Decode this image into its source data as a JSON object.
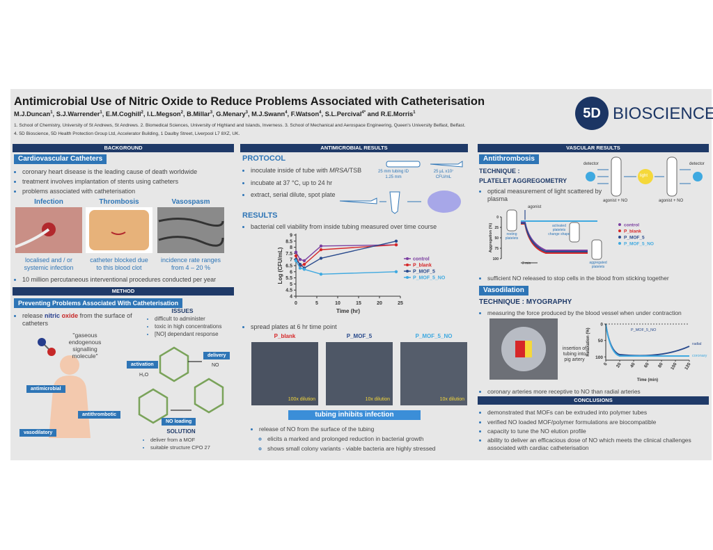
{
  "header": {
    "title": "Antimicrobial Use of Nitric Oxide to Reduce Problems Associated with Catheterisation",
    "authors": [
      {
        "name": "M.J.Duncan",
        "sup": "1"
      },
      {
        "name": "S.J.Warrender",
        "sup": "1"
      },
      {
        "name": "E.M.Coghill",
        "sup": "2"
      },
      {
        "name": "I.L.Megson",
        "sup": "2"
      },
      {
        "name": "B.Millar",
        "sup": "3"
      },
      {
        "name": "G.Menary",
        "sup": "3"
      },
      {
        "name": "M.J.Swann",
        "sup": "4"
      },
      {
        "name": "F.Watson",
        "sup": "4"
      },
      {
        "name": "S.L.Percival",
        "sup": "4*"
      },
      {
        "name": "R.E.Morris",
        "sup": "1"
      }
    ],
    "separator": ", ",
    "conjunction": " and ",
    "affiliations": [
      "1. School of Chemistry, University of St Andrews, St Andrews. 2. Biomedical Sciences, University of Highland and Islands, Inverness. 3. School of Mechanical and Aerospace Engineering, Queen's University Belfast, Belfast.",
      "4. 5D Bioscience, 5D Health Protection Group Ltd, Accelerator Building, 1 Daulby Street, Liverpool L7 8XZ, UK."
    ],
    "logo": {
      "mark": "5D",
      "name": "BIOSCIENCE"
    }
  },
  "background": {
    "heading": "BACKGROUND",
    "subheading": "Cardiovascular Catheters",
    "bullets": [
      "coronary heart disease is the leading cause of death worldwide",
      "treatment involves implantation of stents using catheters",
      "problems associated with catheterisation"
    ],
    "panels": [
      {
        "title": "Infection",
        "caption": "localised and / or systemic infection"
      },
      {
        "title": "Thrombosis",
        "caption": "catheter blocked due to this blood clot"
      },
      {
        "title": "Vasospasm",
        "caption": "incidence rate ranges from 4 – 20 %"
      }
    ],
    "footer_bullet": "10 million percutaneous interventional procedures conducted per year"
  },
  "method": {
    "heading": "METHOD",
    "subheading": "Preventing Problems Associated With Catheterisation",
    "bullet": [
      "release ",
      "nitric",
      " ",
      "oxide",
      " from the surface of catheters"
    ],
    "quote": "\"gaseous endogenous signalling molecule\"",
    "body_labels": [
      "antimicrobial",
      "antithrombotic",
      "vasodilatory"
    ],
    "issues": {
      "title": "ISSUES",
      "items": [
        "difficult to administer",
        "toxic in high concentrations",
        "[NO] dependant response"
      ]
    },
    "mof_labels": {
      "activation": "activation",
      "delivery": "delivery",
      "loading": "NO loading",
      "water": "H₂O",
      "no": "NO"
    },
    "solution": {
      "title": "SOLUTION",
      "items": [
        "deliver from a MOF",
        "suitable structure CPO 27"
      ]
    }
  },
  "antimicrobial": {
    "heading": "ANTIMICROBIAL  RESULTS",
    "protocol_title": "PROTOCOL",
    "protocol_bullets": [
      [
        "inoculate inside of tube with ",
        "MRSA",
        "/TSB"
      ],
      [
        "incubate at 37 °C, up to 24 hr"
      ],
      [
        "extract, serial dilute, spot plate"
      ]
    ],
    "tube_label": "25 mm tubing ID 1.25 mm",
    "inoculum_label": "25 µL x10⁷ CFU/mL",
    "results_title": "RESULTS",
    "results_bullet": "bacterial cell viability from inside tubing measured over time course",
    "plates_bullet": "spread plates at 6 hr time point",
    "plates": [
      {
        "name": "P_blank",
        "dilution": "100x dilution"
      },
      {
        "name": "P_MOF_5",
        "dilution": "10x dilution"
      },
      {
        "name": "P_MOF_5_NO",
        "dilution": "10x dilution"
      }
    ],
    "banner": "tubing inhibits infection",
    "bullet": "release of NO from the surface of the tubing",
    "sub_bullets": [
      "elicits a marked and prolonged reduction in bacterial growth",
      "shows small colony variants - viable bacteria are highly stressed"
    ]
  },
  "chart_data": {
    "type": "line",
    "x_label": "Time (hr)",
    "y_label": "Log (CFU/mL)",
    "x": [
      0,
      1,
      2,
      6,
      24
    ],
    "series": [
      {
        "name": "control",
        "color": "#7b3fa0",
        "values": [
          7.6,
          7.0,
          6.9,
          8.1,
          8.2
        ]
      },
      {
        "name": "P_blank",
        "color": "#d62728",
        "values": [
          7.3,
          6.5,
          6.6,
          7.8,
          8.2
        ]
      },
      {
        "name": "P_MOF_5",
        "color": "#2a4b8d",
        "values": [
          7.0,
          6.6,
          6.3,
          7.1,
          8.5
        ]
      },
      {
        "name": "P_MOF_5_NO",
        "color": "#3fa9e0",
        "values": [
          6.9,
          6.3,
          6.2,
          5.8,
          6.0
        ]
      }
    ],
    "xlim": [
      0,
      25
    ],
    "ylim": [
      4,
      9
    ],
    "xticks": [
      0,
      5,
      10,
      15,
      20,
      25
    ],
    "yticks": [
      4,
      4.5,
      5,
      5.5,
      6,
      6.5,
      7,
      7.5,
      8,
      8.5,
      9
    ]
  },
  "vascular": {
    "heading": "VASCULAR RESULTS",
    "antithrombosis": {
      "subheading": "Antithrombosis",
      "technique": "TECHNIQUE :",
      "method": "PLATELET AGGREGOMETRY",
      "diagram": {
        "detector": "detector",
        "light": "light",
        "agonist_no": "agonist + NO"
      },
      "bullet": "optical measurement of light scattered by plasma",
      "chart": {
        "y_label": "Aggregation (%)",
        "ylim": [
          0,
          100
        ],
        "yticks": [
          0,
          25,
          50,
          75,
          100
        ],
        "y_inverted": true,
        "time_label": "2 min",
        "agonist": "agonist",
        "resting": "resting platelets",
        "activated": "activated platelets change shape",
        "aggregated": "aggregated platelets",
        "legend": [
          {
            "name": "control",
            "color": "#7b3fa0"
          },
          {
            "name": "P_blank",
            "color": "#d62728"
          },
          {
            "name": "P_MOF_5",
            "color": "#2a4b8d"
          },
          {
            "name": "P_MOF_5_NO",
            "color": "#3fa9e0"
          }
        ]
      },
      "result": "sufficient NO released to stop cells in the blood from sticking together"
    },
    "vasodilation": {
      "subheading": "Vasodilation",
      "technique": "TECHNIQUE : MYOGRAPHY",
      "bullet": "measuring the force produced by the blood vessel when under contraction",
      "photo_label": "insertion of tubing into pig artery",
      "chart": {
        "y_label": "Relaxation (%)",
        "x_label": "Time (min)",
        "ylim": [
          0,
          110
        ],
        "yticks": [
          0,
          50,
          100
        ],
        "y_inverted": true,
        "xlim": [
          0,
          120
        ],
        "xticks": [
          0,
          20,
          40,
          60,
          80,
          100,
          120
        ],
        "series_label": "P_MOF_5_NO",
        "radial": "radial",
        "coronary": "coronary"
      },
      "result": "coronary arteries more receptive to NO than radial arteries"
    }
  },
  "conclusions": {
    "heading": "CONCLUSIONS",
    "bullets": [
      "demonstrated that MOFs can be extruded into polymer tubes",
      "verified NO loaded MOF/polymer formulations are biocompatible",
      "capacity to tune the NO elution profile",
      "ability to deliver an efficacious dose of NO which meets the clinical challenges associated with cardiac catheterisation"
    ]
  }
}
